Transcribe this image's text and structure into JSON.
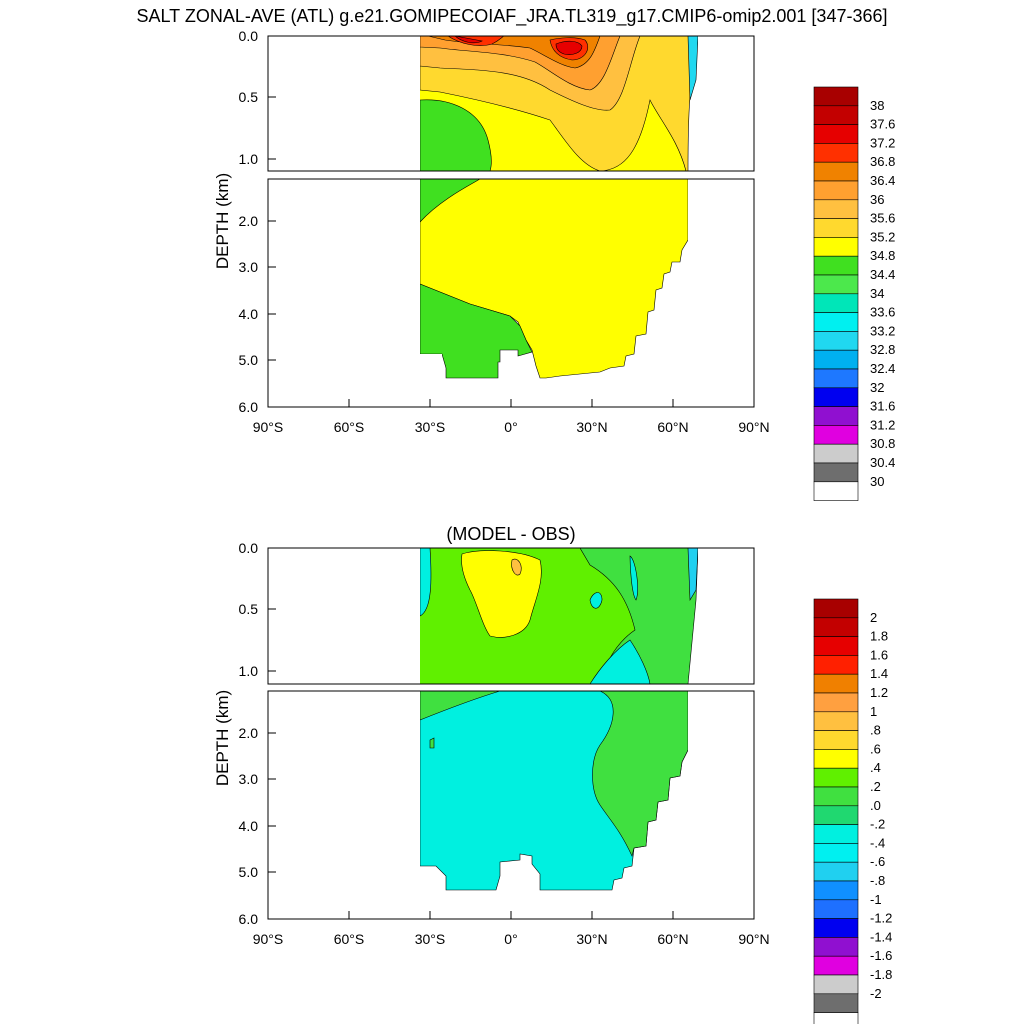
{
  "figure": {
    "title": "SALT ZONAL-AVE (ATL) g.e21.GOMIPECOIAF_JRA.TL319_g17.CMIP6-omip2.001 [347-366]"
  },
  "chart_data": [
    {
      "type": "heatmap",
      "title": "",
      "xlabel": "",
      "ylabel": "DEPTH (km)",
      "x_ticks": [
        "90°S",
        "60°S",
        "30°S",
        "0°",
        "30°N",
        "60°N",
        "90°N"
      ],
      "x_range": [
        -90,
        90
      ],
      "y_range_km": [
        0,
        6
      ],
      "y_ticks_upper": [
        "0.0",
        "0.5",
        "1.0"
      ],
      "y_ticks_lower": [
        "2.0",
        "3.0",
        "4.0",
        "5.0",
        "6.0"
      ],
      "upper_panel_depth_km": [
        0,
        1.1
      ],
      "lower_panel_depth_km": [
        1.1,
        6
      ],
      "colorbar": {
        "labels": [
          "38",
          "37.6",
          "37.2",
          "36.8",
          "36.4",
          "36",
          "35.6",
          "35.2",
          "34.8",
          "34.4",
          "34",
          "33.6",
          "33.2",
          "32.8",
          "32.4",
          "32",
          "31.6",
          "31.2",
          "30.8",
          "30.4",
          "30"
        ],
        "colors": [
          "#a80000",
          "#c30000",
          "#e60000",
          "#ff3000",
          "#f08200",
          "#ffa030",
          "#ffc040",
          "#ffd92e",
          "#ffff00",
          "#40e020",
          "#4ce84c",
          "#00e6b8",
          "#00f0f0",
          "#20d8f0",
          "#00b0f0",
          "#1e78ff",
          "#0000f0",
          "#9010d0",
          "#e000e0",
          "#cccccc",
          "#6e6e6e",
          "#ffffff"
        ]
      },
      "regions": [
        {
          "name": "upper",
          "values": [
            "36.8–37.6 (near 15°S–0° surface)",
            "37.2 (near 20°N–30°N surface)",
            "35.2–36.4 (subtropical thermocline)",
            "34.8–35.2 (upper ocean)",
            "34.4–34.8 (30°S–5°S, 0.5–1.1 km)"
          ]
        },
        {
          "name": "lower",
          "values": [
            "34.8–35.2 (NADW, 20°S–65°N)",
            "34.4–34.8 (30°S–10°N abyss)"
          ]
        }
      ],
      "land_limits": {
        "south": -35,
        "north": 65
      }
    },
    {
      "type": "heatmap",
      "title": "(MODEL - OBS)",
      "xlabel": "",
      "ylabel": "DEPTH (km)",
      "x_ticks": [
        "90°S",
        "60°S",
        "30°S",
        "0°",
        "30°N",
        "60°N",
        "90°N"
      ],
      "x_range": [
        -90,
        90
      ],
      "y_range_km": [
        0,
        6
      ],
      "y_ticks_upper": [
        "0.0",
        "0.5",
        "1.0"
      ],
      "y_ticks_lower": [
        "2.0",
        "3.0",
        "4.0",
        "5.0",
        "6.0"
      ],
      "upper_panel_depth_km": [
        0,
        1.1
      ],
      "lower_panel_depth_km": [
        1.1,
        6
      ],
      "colorbar": {
        "labels": [
          "2",
          "1.8",
          "1.6",
          "1.4",
          "1.2",
          "1",
          ".8",
          ".6",
          ".4",
          ".2",
          ".0",
          "-.2",
          "-.4",
          "-.6",
          "-.8",
          "-1",
          "-1.2",
          "-1.4",
          "-1.6",
          "-1.8",
          "-2"
        ],
        "colors": [
          "#a80000",
          "#c30000",
          "#e60000",
          "#ff2000",
          "#f08000",
          "#ffa040",
          "#ffc040",
          "#ffd92e",
          "#ffff00",
          "#60f000",
          "#40e040",
          "#20d870",
          "#00f0e0",
          "#00f0f0",
          "#20d0f0",
          "#1090ff",
          "#1e70ff",
          "#0000f0",
          "#9010d0",
          "#e000e0",
          "#cccccc",
          "#6e6e6e",
          "#ffffff"
        ]
      },
      "regions": [
        {
          "name": "upper",
          "values": [
            "0.4–0.6 (20°S–5°N, 0–0.8 km)",
            "0.2–0.4 (broad upper ocean)",
            "0.0–0.2 (north of 20°N)",
            "-0.2–0.0 (35°S edge, 30°N–45°N mid-depth)"
          ]
        },
        {
          "name": "lower",
          "values": [
            "-0.2–0.0 (deep ocean south of 30°N)",
            "0.0–0.2 (30°N–65°N, 1.1–4.5 km)"
          ]
        }
      ],
      "land_limits": {
        "south": -35,
        "north": 65
      }
    }
  ]
}
